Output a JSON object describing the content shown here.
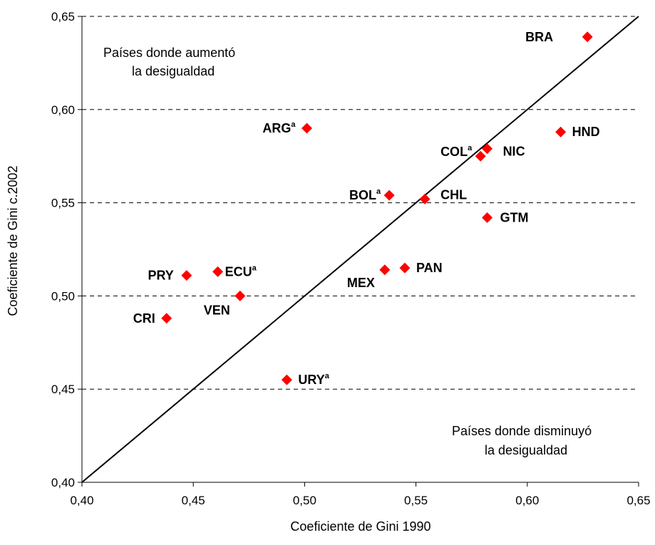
{
  "chart_data": {
    "type": "scatter",
    "xlabel": "Coeficiente de Gini 1990",
    "ylabel": "Coeficiente de Gini c.2002",
    "xlim": [
      0.4,
      0.65
    ],
    "ylim": [
      0.4,
      0.65
    ],
    "xticks": [
      "0,40",
      "0,45",
      "0,50",
      "0,55",
      "0,60",
      "0,65"
    ],
    "yticks": [
      "0,40",
      "0,45",
      "0,50",
      "0,55",
      "0,60",
      "0,65"
    ],
    "grid": "horizontal dashed",
    "marker_color": "#ff0000",
    "reference_line": {
      "x": [
        0.4,
        0.65
      ],
      "y": [
        0.4,
        0.65
      ]
    },
    "annotations": [
      {
        "line1": "Países donde aumentó",
        "line2": "la desigualdad"
      },
      {
        "line1": "Países donde disminuyó",
        "line2": "la desigualdad"
      }
    ],
    "points": [
      {
        "label": "BRA",
        "sup": "",
        "x": 0.627,
        "y": 0.639
      },
      {
        "label": "ARG",
        "sup": "a",
        "x": 0.501,
        "y": 0.59
      },
      {
        "label": "HND",
        "sup": "",
        "x": 0.615,
        "y": 0.588
      },
      {
        "label": "NIC",
        "sup": "",
        "x": 0.582,
        "y": 0.579
      },
      {
        "label": "COL",
        "sup": "a",
        "x": 0.579,
        "y": 0.575
      },
      {
        "label": "BOL",
        "sup": "a",
        "x": 0.538,
        "y": 0.554
      },
      {
        "label": "CHL",
        "sup": "",
        "x": 0.554,
        "y": 0.552
      },
      {
        "label": "GTM",
        "sup": "",
        "x": 0.582,
        "y": 0.542
      },
      {
        "label": "PAN",
        "sup": "",
        "x": 0.545,
        "y": 0.515
      },
      {
        "label": "MEX",
        "sup": "",
        "x": 0.536,
        "y": 0.514
      },
      {
        "label": "ECU",
        "sup": "a",
        "x": 0.461,
        "y": 0.513
      },
      {
        "label": "PRY",
        "sup": "",
        "x": 0.447,
        "y": 0.511
      },
      {
        "label": "VEN",
        "sup": "",
        "x": 0.471,
        "y": 0.5
      },
      {
        "label": "CRI",
        "sup": "",
        "x": 0.438,
        "y": 0.488
      },
      {
        "label": "URY",
        "sup": "a",
        "x": 0.492,
        "y": 0.455
      }
    ]
  }
}
